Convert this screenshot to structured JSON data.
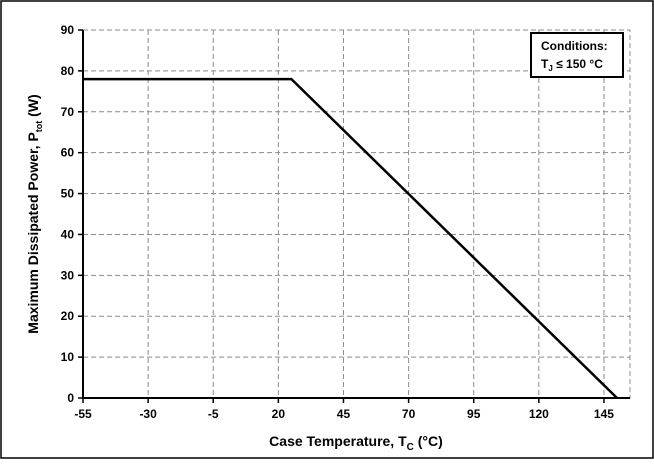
{
  "chart_data": {
    "type": "line",
    "title": "",
    "xlabel": {
      "prefix": "Case Temperature, T",
      "sub": "C",
      "suffix": " (°C)"
    },
    "ylabel": {
      "prefix": "Maximum Dissipated Power, P",
      "sub": "tot",
      "suffix": " (W)"
    },
    "xlim": [
      -55,
      155
    ],
    "ylim": [
      0,
      90
    ],
    "xticks": [
      -55,
      -30,
      -5,
      20,
      45,
      70,
      95,
      120,
      145
    ],
    "yticks": [
      0,
      10,
      20,
      30,
      40,
      50,
      60,
      70,
      80,
      90
    ],
    "grid": true,
    "series": [
      {
        "x": [
          -55,
          25,
          150
        ],
        "y": [
          78,
          78,
          0
        ]
      }
    ],
    "annotation": {
      "line1": "Conditions:",
      "line2_prefix": "T",
      "line2_sub": "J",
      "line2_suffix": " ≤ 150 °C",
      "position": "top-right"
    }
  }
}
